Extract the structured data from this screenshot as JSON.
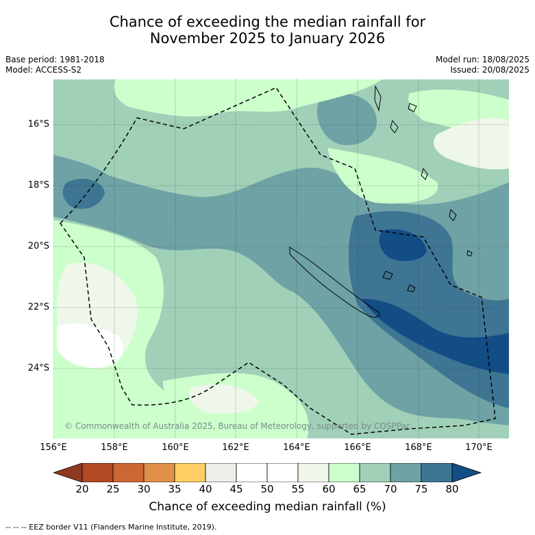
{
  "title_line1": "Chance of exceeding the median rainfall for",
  "title_line2": "November 2025 to January 2026",
  "base_period": "Base period: 1981-2018",
  "model": "Model: ACCESS-S2",
  "model_run": "Model run: 18/08/2025",
  "issued": "Issued: 20/08/2025",
  "copyright": "© Commonwealth of Australia 2025, Bureau of Meteorology, supported by COSPPac",
  "lat_labels": [
    "16°S",
    "18°S",
    "20°S",
    "22°S",
    "24°S"
  ],
  "lon_labels": [
    "156°E",
    "158°E",
    "160°E",
    "162°E",
    "164°E",
    "166°E",
    "168°E",
    "170°E"
  ],
  "colorbar": {
    "ticks": [
      "20",
      "25",
      "30",
      "35",
      "40",
      "45",
      "50",
      "55",
      "60",
      "65",
      "70",
      "75",
      "80"
    ],
    "colors": [
      "#8e3a22",
      "#b24a25",
      "#cc6633",
      "#e09048",
      "#ffcf66",
      "#ededea",
      "#ffffff",
      "#ffffff",
      "#eef7ea",
      "#ccffcc",
      "#a0d0b8",
      "#6ea2a4",
      "#3e7593",
      "#134d85"
    ],
    "title": "Chance of exceeding median rainfall (%)"
  },
  "footnote": "--  --  -- EEZ border V11 (Flanders Marine Institute, 2019)."
}
